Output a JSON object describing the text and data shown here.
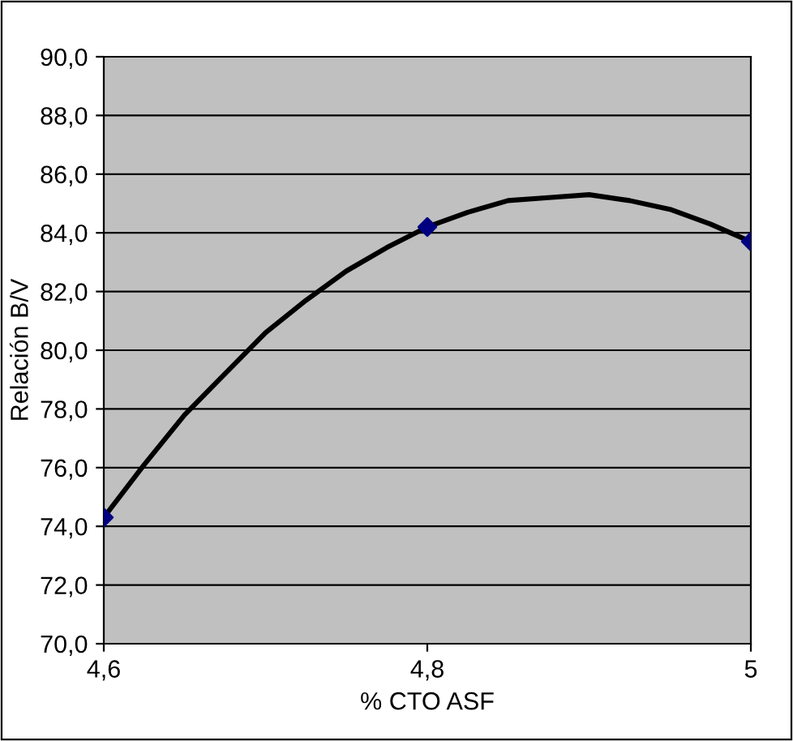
{
  "chart_data": {
    "type": "scatter",
    "xlabel": "% CTO ASF",
    "ylabel": "Relación B/V",
    "xlim": [
      4.6,
      5.0
    ],
    "ylim": [
      70,
      90
    ],
    "xticks": [
      {
        "value": 4.6,
        "label": "4,6"
      },
      {
        "value": 4.8,
        "label": "4,8"
      },
      {
        "value": 5,
        "label": "5"
      }
    ],
    "yticks": [
      {
        "value": 70,
        "label": "70,0"
      },
      {
        "value": 72,
        "label": "72,0"
      },
      {
        "value": 74,
        "label": "74,0"
      },
      {
        "value": 76,
        "label": "76,0"
      },
      {
        "value": 78,
        "label": "78,0"
      },
      {
        "value": 80,
        "label": "80,0"
      },
      {
        "value": 82,
        "label": "82,0"
      },
      {
        "value": 84,
        "label": "84,0"
      },
      {
        "value": 86,
        "label": "86,0"
      },
      {
        "value": 88,
        "label": "88,0"
      },
      {
        "value": 90,
        "label": "90,0"
      }
    ],
    "grid": "y",
    "series": [
      {
        "type": "line",
        "color": "#000000",
        "marker": "none",
        "x": [
          4.6,
          4.625,
          4.65,
          4.675,
          4.7,
          4.725,
          4.75,
          4.775,
          4.8,
          4.825,
          4.85,
          4.875,
          4.9,
          4.925,
          4.95,
          4.975,
          5.0
        ],
        "values": [
          74.3,
          76.1,
          77.8,
          79.2,
          80.6,
          81.7,
          82.7,
          83.5,
          84.2,
          84.7,
          85.1,
          85.2,
          85.3,
          85.1,
          84.8,
          84.3,
          83.7
        ]
      },
      {
        "color": "#000080",
        "marker": "diamond",
        "x": [
          4.6,
          4.8,
          5.0
        ],
        "values": [
          74.3,
          84.2,
          83.7
        ]
      }
    ]
  }
}
